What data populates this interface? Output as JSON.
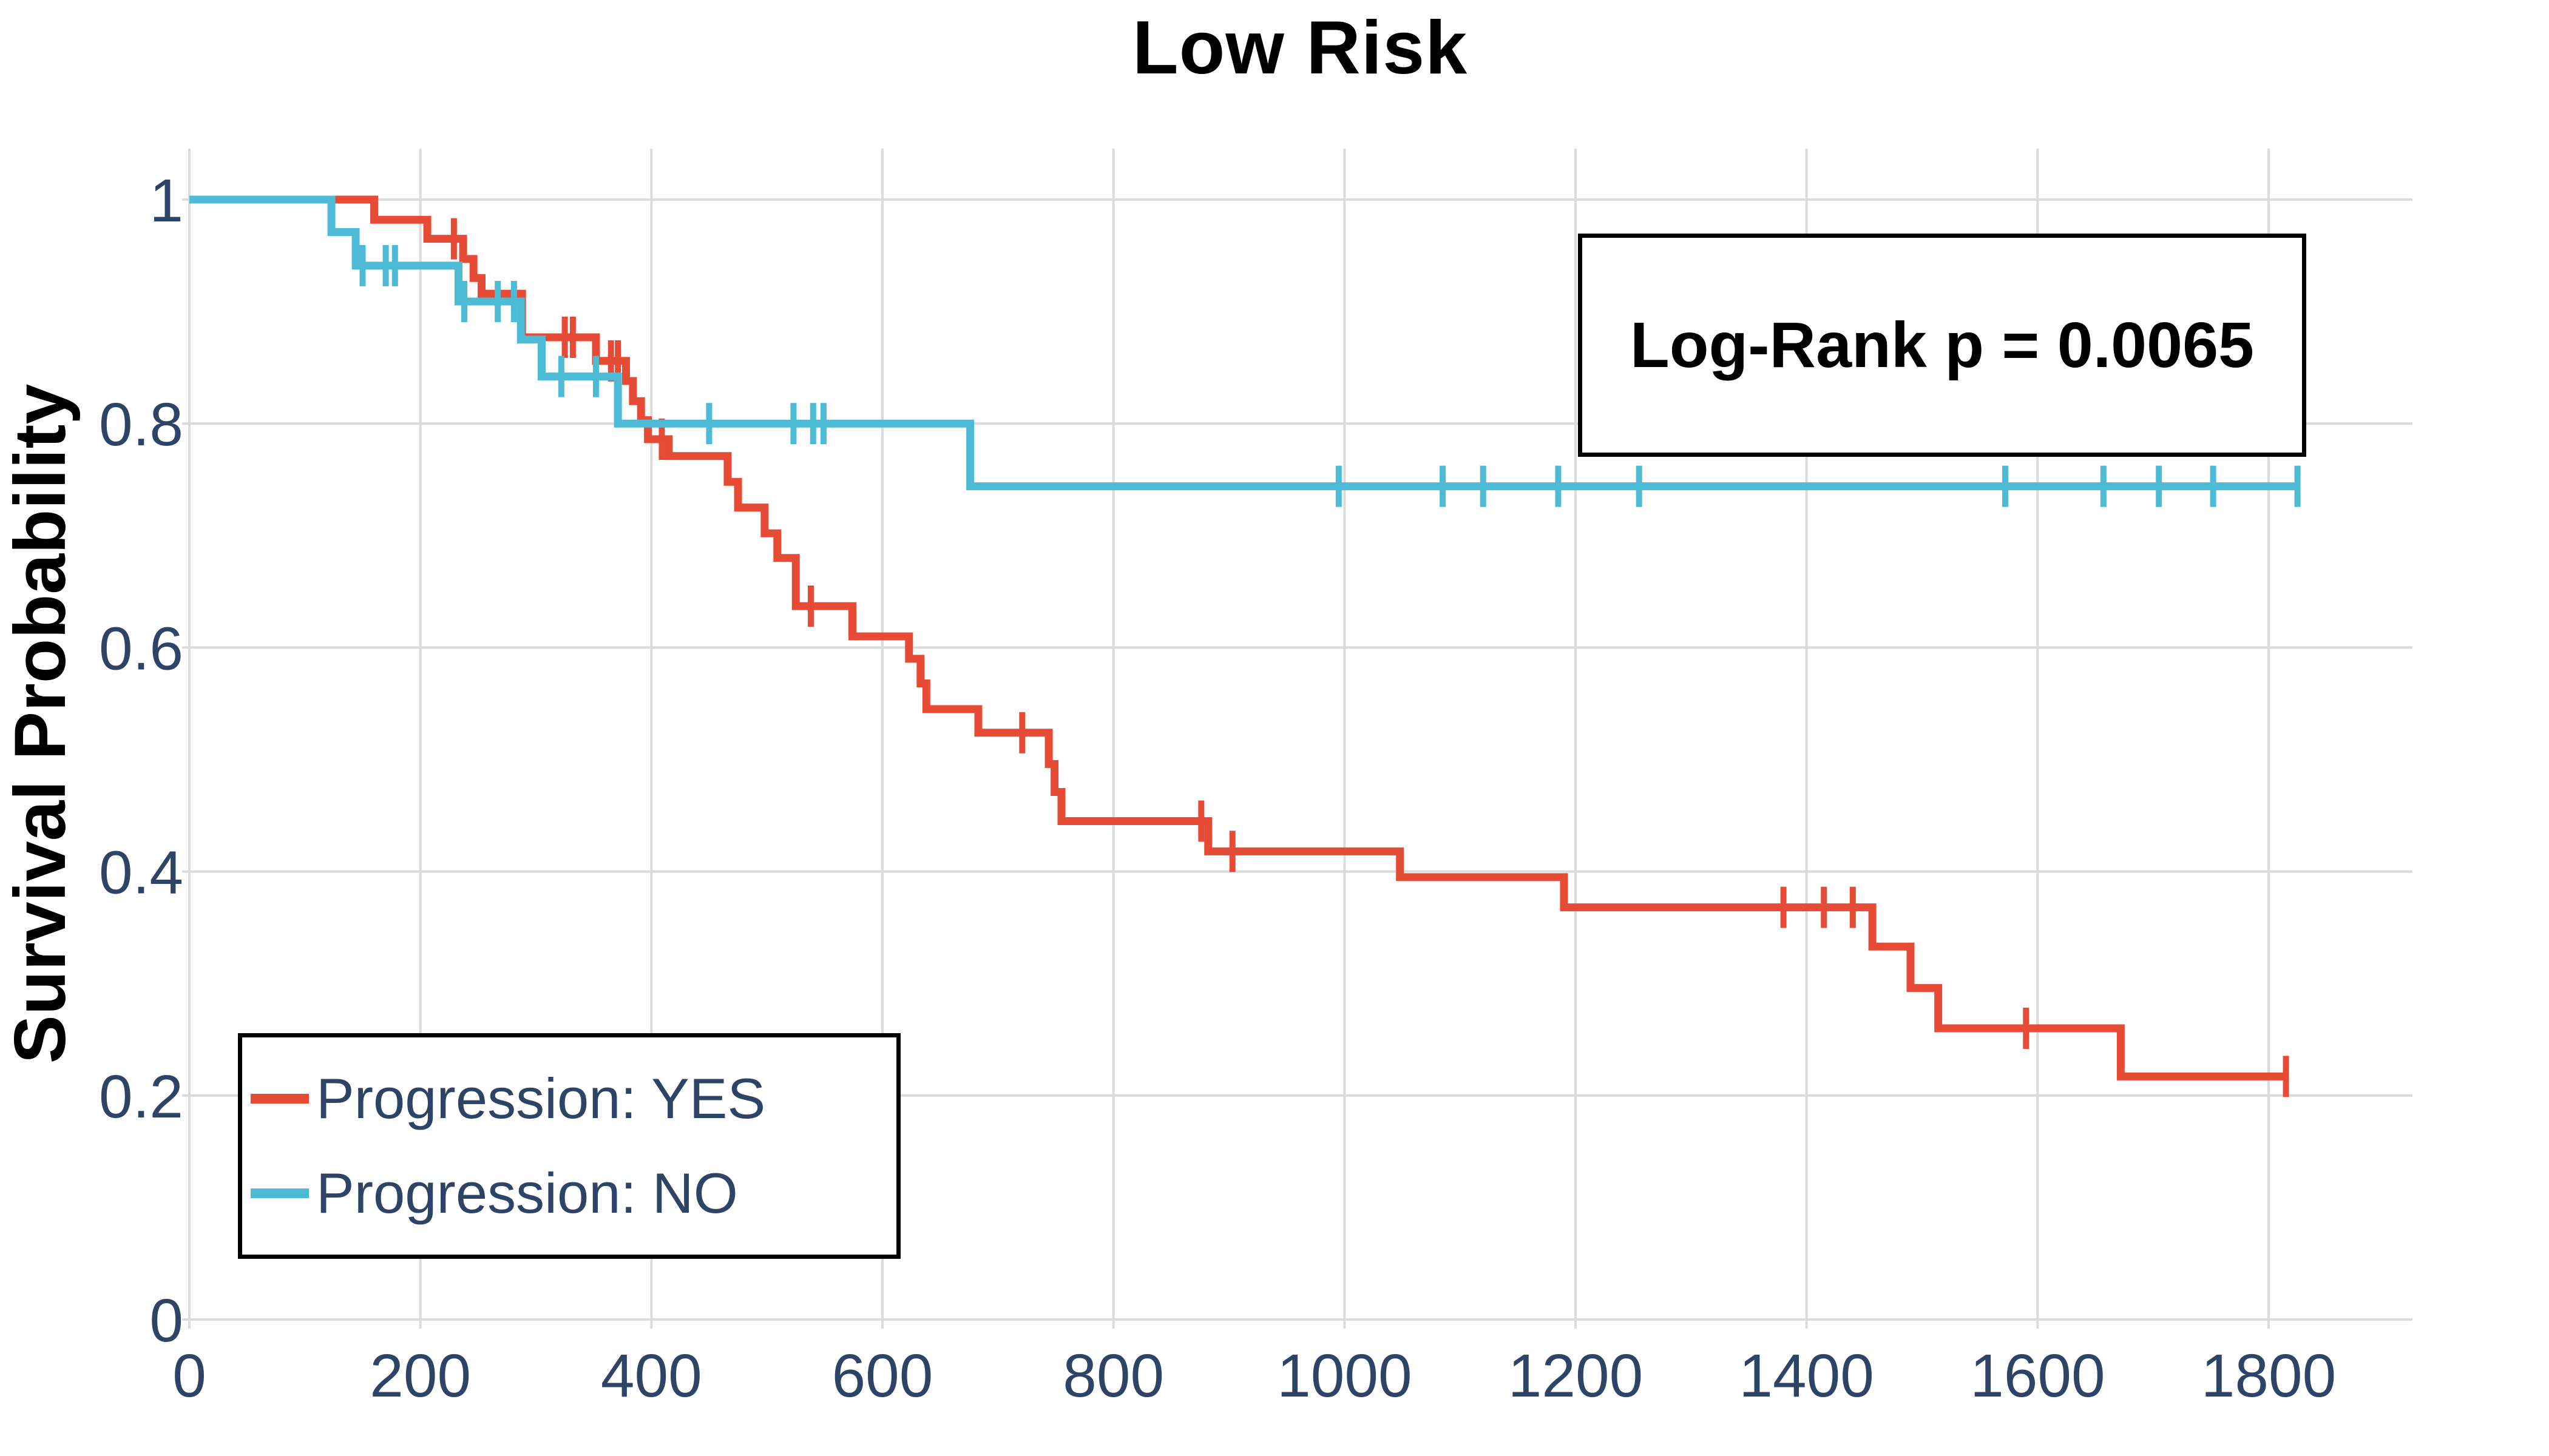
{
  "title": "Low Risk",
  "annotation": {
    "text": "Log-Rank p = 0.0065"
  },
  "axes": {
    "y_label": "Survival Probability",
    "x_tick_labels": [
      "0",
      "200",
      "400",
      "600",
      "800",
      "1000",
      "1200",
      "1400",
      "1600",
      "1800"
    ],
    "y_tick_labels": [
      "0",
      "0.2",
      "0.4",
      "0.6",
      "0.8",
      "1"
    ]
  },
  "legend": {
    "items": [
      {
        "label": "Progression: YES",
        "color": "#E64B35"
      },
      {
        "label": "Progression: NO",
        "color": "#4DBBD5"
      }
    ]
  },
  "colors": {
    "yes_curve": "#E64B35",
    "no_curve": "#4DBBD5",
    "tick_text": "#2E4466",
    "grid": "#DBDBDB",
    "title_text": "#000000",
    "background": "#ffffff"
  },
  "chart_data": {
    "type": "line",
    "subtype": "kaplan_meier_step",
    "title": "Low Risk",
    "xlabel": "",
    "ylabel": "Survival Probability",
    "x_ticks": [
      0,
      200,
      400,
      600,
      800,
      1000,
      1200,
      1400,
      1600,
      1800
    ],
    "y_ticks": [
      0,
      0.2,
      0.4,
      0.6,
      0.8,
      1
    ],
    "xlim": [
      0,
      1920
    ],
    "ylim": [
      0,
      1.04
    ],
    "grid": true,
    "legend_position": "bottom-left",
    "annotation": "Log-Rank p = 0.0065",
    "series": [
      {
        "name": "Progression: YES",
        "color": "#E64B35",
        "end_time": 1815,
        "steps": [
          [
            0,
            1.0
          ],
          [
            160,
            0.982
          ],
          [
            206,
            0.965
          ],
          [
            237,
            0.947
          ],
          [
            246,
            0.93
          ],
          [
            253,
            0.916
          ],
          [
            288,
            0.877
          ],
          [
            352,
            0.856
          ],
          [
            378,
            0.838
          ],
          [
            384,
            0.82
          ],
          [
            391,
            0.803
          ],
          [
            397,
            0.786
          ],
          [
            415,
            0.771
          ],
          [
            466,
            0.748
          ],
          [
            475,
            0.725
          ],
          [
            498,
            0.702
          ],
          [
            509,
            0.68
          ],
          [
            525,
            0.637
          ],
          [
            574,
            0.61
          ],
          [
            623,
            0.59
          ],
          [
            633,
            0.568
          ],
          [
            638,
            0.545
          ],
          [
            683,
            0.524
          ],
          [
            744,
            0.496
          ],
          [
            749,
            0.471
          ],
          [
            755,
            0.445
          ],
          [
            882,
            0.418
          ],
          [
            1048,
            0.395
          ],
          [
            1190,
            0.368
          ],
          [
            1457,
            0.333
          ],
          [
            1490,
            0.296
          ],
          [
            1514,
            0.26
          ],
          [
            1672,
            0.217
          ]
        ],
        "censor_times": [
          [
            229,
            0.965
          ],
          [
            325,
            0.877
          ],
          [
            332,
            0.877
          ],
          [
            365,
            0.856
          ],
          [
            371,
            0.856
          ],
          [
            409,
            0.786
          ],
          [
            538,
            0.637
          ],
          [
            721,
            0.524
          ],
          [
            876,
            0.445
          ],
          [
            903,
            0.418
          ],
          [
            1380,
            0.368
          ],
          [
            1415,
            0.368
          ],
          [
            1440,
            0.368
          ],
          [
            1590,
            0.26
          ],
          [
            1815,
            0.217
          ]
        ]
      },
      {
        "name": "Progression: NO",
        "color": "#4DBBD5",
        "end_time": 1825,
        "steps": [
          [
            0,
            1.0
          ],
          [
            123,
            0.971
          ],
          [
            144,
            0.941
          ],
          [
            233,
            0.909
          ],
          [
            287,
            0.875
          ],
          [
            305,
            0.842
          ],
          [
            371,
            0.8
          ],
          [
            676,
            0.744
          ]
        ],
        "censor_times": [
          [
            150,
            0.941
          ],
          [
            170,
            0.941
          ],
          [
            178,
            0.941
          ],
          [
            238,
            0.909
          ],
          [
            267,
            0.909
          ],
          [
            281,
            0.909
          ],
          [
            322,
            0.842
          ],
          [
            352,
            0.842
          ],
          [
            450,
            0.8
          ],
          [
            523,
            0.8
          ],
          [
            540,
            0.8
          ],
          [
            549,
            0.8
          ],
          [
            995,
            0.744
          ],
          [
            1085,
            0.744
          ],
          [
            1120,
            0.744
          ],
          [
            1185,
            0.744
          ],
          [
            1255,
            0.744
          ],
          [
            1572,
            0.744
          ],
          [
            1657,
            0.744
          ],
          [
            1705,
            0.744
          ],
          [
            1752,
            0.744
          ],
          [
            1825,
            0.744
          ]
        ]
      }
    ]
  }
}
